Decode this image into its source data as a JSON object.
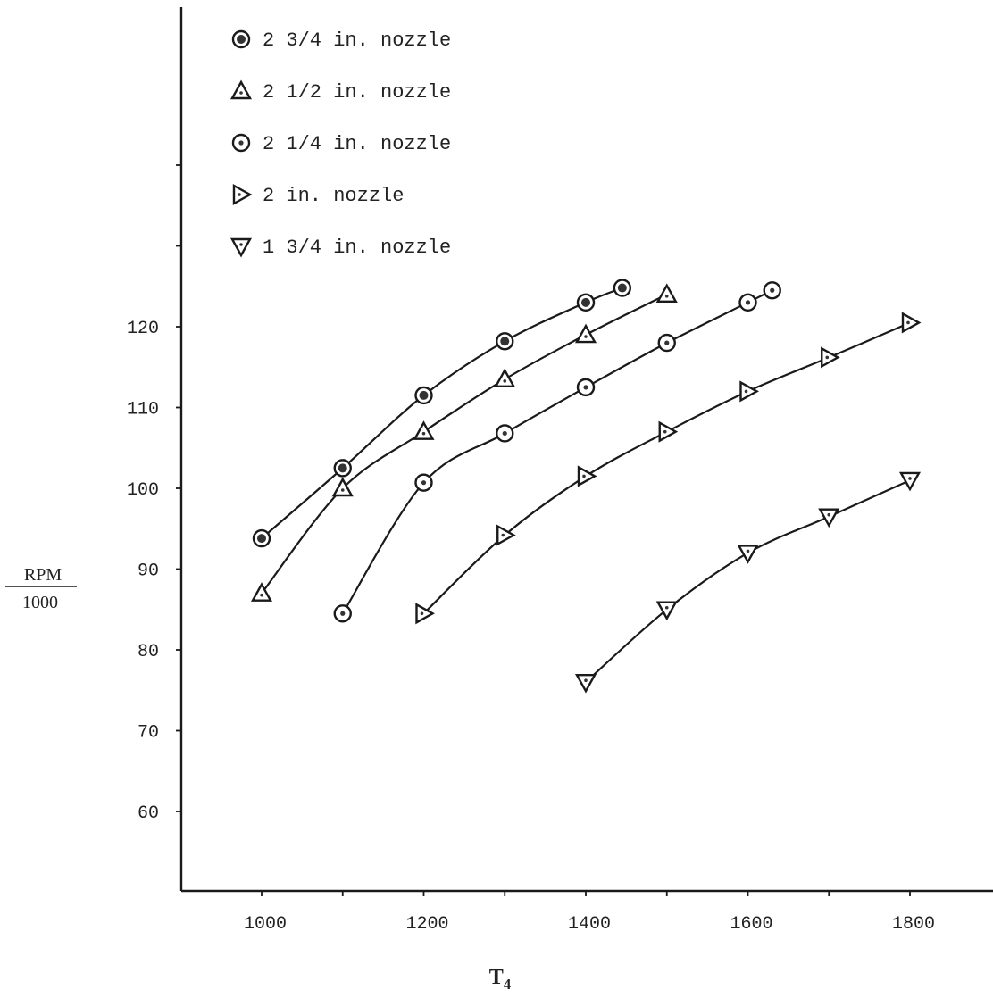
{
  "chart_data": {
    "type": "line",
    "title": "",
    "xlabel": "T",
    "xlabel_sub": "4",
    "ylabel_num": "RPM",
    "ylabel_den": "1000",
    "xlim": [
      900,
      1850
    ],
    "ylim": [
      50,
      150
    ],
    "x_ticks": [
      1000,
      1100,
      1200,
      1300,
      1400,
      1500,
      1600,
      1700,
      1800
    ],
    "x_tick_labels": [
      "1000",
      "1200",
      "1400",
      "1600",
      "1800"
    ],
    "x_tick_label_values": [
      1000,
      1200,
      1400,
      1600,
      1800
    ],
    "y_ticks": [
      60,
      70,
      80,
      90,
      100,
      110,
      120,
      130,
      140
    ],
    "y_tick_labels": [
      "60",
      "70",
      "80",
      "90",
      "100",
      "110",
      "120"
    ],
    "y_tick_label_values": [
      60,
      70,
      80,
      90,
      100,
      110,
      120
    ],
    "grid": false,
    "legend_position": "top-left",
    "series": [
      {
        "name": "2 3/4 in. nozzle",
        "marker": "circle-filled",
        "x": [
          1000,
          1100,
          1200,
          1300,
          1400,
          1445
        ],
        "y": [
          93.8,
          102.5,
          111.5,
          118.2,
          123,
          124.8
        ]
      },
      {
        "name": "2 1/2 in. nozzle",
        "marker": "triangle-up",
        "x": [
          1000,
          1100,
          1200,
          1300,
          1400,
          1500
        ],
        "y": [
          87,
          100,
          107,
          113.5,
          119,
          124
        ]
      },
      {
        "name": "2 1/4 in. nozzle",
        "marker": "circle-dot",
        "x": [
          1100,
          1200,
          1300,
          1400,
          1500,
          1600,
          1630
        ],
        "y": [
          84.5,
          100.7,
          106.8,
          112.5,
          118,
          123,
          124.5
        ]
      },
      {
        "name": "2 in. nozzle",
        "marker": "triangle-right",
        "x": [
          1200,
          1300,
          1400,
          1500,
          1600,
          1700,
          1800
        ],
        "y": [
          84.5,
          94.2,
          101.5,
          107,
          112,
          116.2,
          120.5
        ]
      },
      {
        "name": "1 3/4 in. nozzle",
        "marker": "triangle-down",
        "x": [
          1400,
          1500,
          1600,
          1700,
          1800
        ],
        "y": [
          76,
          85,
          92,
          96.5,
          101
        ]
      }
    ]
  }
}
